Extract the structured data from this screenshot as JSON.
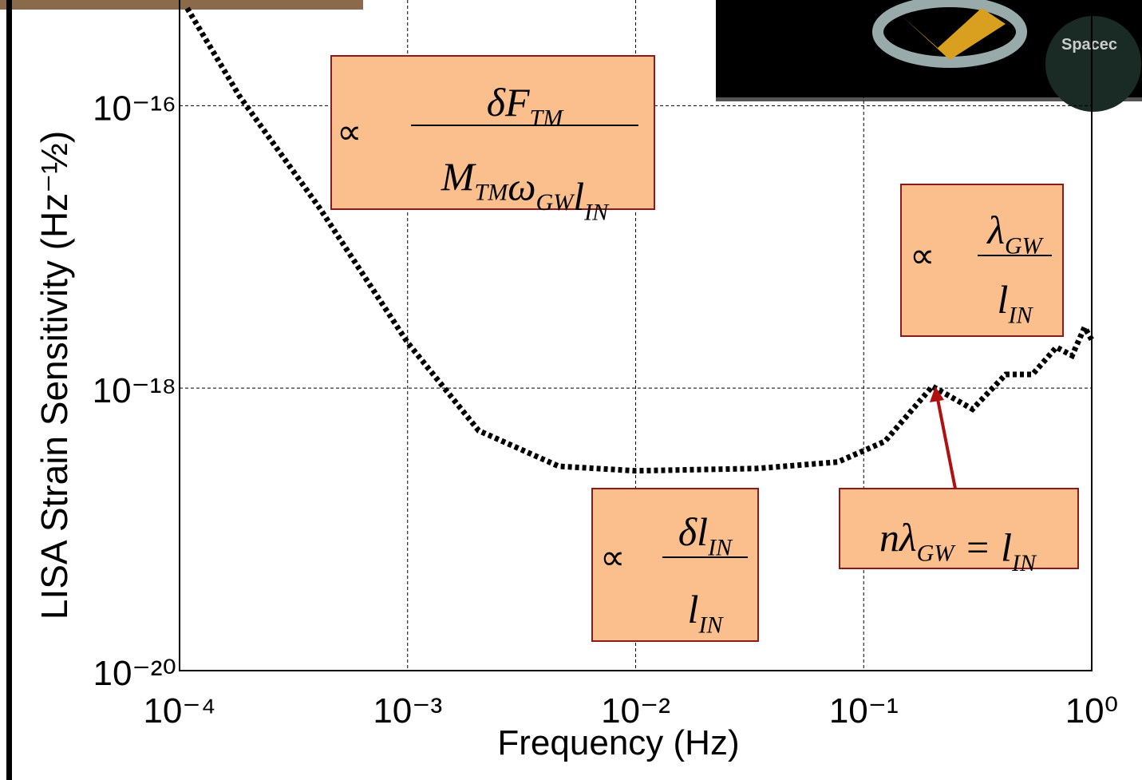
{
  "chart_data": {
    "type": "line",
    "x_scale": "log",
    "y_scale": "log",
    "xlabel": "Frequency (Hz)",
    "ylabel": "LISA Strain Sensitivity (Hz⁻½)",
    "x": [
      0.000108,
      0.000183,
      0.00041,
      0.001,
      0.00205,
      0.0046,
      0.01,
      0.034,
      0.077,
      0.124,
      0.2,
      0.3,
      0.42,
      0.55,
      0.7,
      0.82,
      0.93,
      1.0
    ],
    "values": [
      4.9e-16,
      1.17e-16,
      1.9e-17,
      2.1e-18,
      5e-19,
      2.8e-19,
      2.6e-19,
      2.7e-19,
      3e-19,
      4.2e-19,
      1.03e-18,
      7.1e-19,
      1.25e-18,
      1.25e-18,
      1.95e-18,
      1.7e-18,
      2.7e-18,
      2.2e-18
    ],
    "color": "#000000",
    "xlim": [
      0.0001,
      1
    ],
    "ylim": [
      1e-20,
      5.6e-16
    ],
    "xticks": [
      {
        "value": 0.0001,
        "label": "10⁻⁴"
      },
      {
        "value": 0.001,
        "label": "10⁻³"
      },
      {
        "value": 0.01,
        "label": "10⁻²"
      },
      {
        "value": 0.1,
        "label": "10⁻¹"
      },
      {
        "value": 1,
        "label": "10⁰"
      }
    ],
    "yticks": [
      {
        "value": 1e-20,
        "label": "10⁻²⁰"
      },
      {
        "value": 1e-18,
        "label": "10⁻¹⁸"
      },
      {
        "value": 1e-16,
        "label": "10⁻¹⁶"
      }
    ],
    "grid": true,
    "annotations": [
      {
        "symbol": "∝",
        "numerator": [
          {
            "text": "δF",
            "sub": "TM"
          }
        ],
        "denominator": [
          {
            "text": "M",
            "sub": "TM"
          },
          {
            "text": "ω",
            "sub": "GW"
          },
          {
            "text": "l",
            "sub": "IN"
          }
        ]
      },
      {
        "symbol": "∝",
        "numerator": [
          {
            "text": "λ",
            "sub": "GW"
          }
        ],
        "denominator": [
          {
            "text": "l",
            "sub": "IN"
          }
        ]
      },
      {
        "symbol": "∝",
        "numerator": [
          {
            "text": "δl",
            "sub": "IN"
          }
        ],
        "denominator": [
          {
            "text": "l",
            "sub": "IN"
          }
        ]
      },
      {
        "expression": [
          {
            "text": "nλ",
            "sub": "GW"
          },
          {
            "text": " = "
          },
          {
            "text": "l",
            "sub": "IN"
          }
        ]
      }
    ],
    "inset_caption": "Spacec"
  }
}
